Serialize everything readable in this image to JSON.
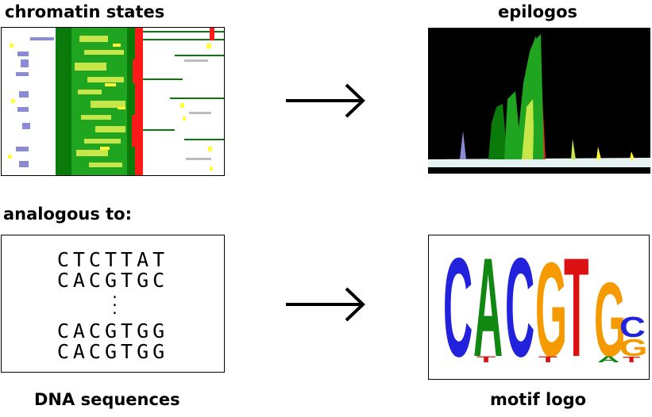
{
  "labels": {
    "chromatin_states": "chromatin states",
    "epilogos": "epilogos",
    "analogous_to": "analogous to:",
    "dna_sequences": "DNA sequences",
    "motif_logo": "motif logo"
  },
  "sequences": {
    "top": [
      "CTCTTAT",
      "CACGTGC"
    ],
    "ellipsis": [
      "·",
      "·",
      "·"
    ],
    "bottom": [
      "CACGTGG",
      "CACGTGG"
    ]
  },
  "motif_logo_letters": [
    {
      "main": "C",
      "main_color": "#2222dd"
    },
    {
      "main": "A",
      "main_color": "#118811",
      "minor": "T",
      "minor_color": "#dd1111"
    },
    {
      "main": "C",
      "main_color": "#2222dd"
    },
    {
      "main": "G",
      "main_color": "#f59a00",
      "minor": "T",
      "minor_color": "#dd1111"
    },
    {
      "main": "T",
      "main_color": "#dd1111"
    },
    {
      "main": "G",
      "main_color": "#f59a00",
      "minor": "A",
      "minor_color": "#118811"
    },
    {
      "main": "C",
      "main_color": "#2222dd",
      "minor": "G",
      "minor_color": "#f59a00",
      "extra": "T",
      "extra_color": "#dd1111"
    }
  ],
  "colors": {
    "state_green_dark": "#0a7a0a",
    "state_green": "#1fa51f",
    "state_lime": "#c6e64a",
    "state_yellow": "#ffff33",
    "state_red": "#ff1a1a",
    "state_blue": "#8a8ad6",
    "state_gray": "#bdbdbd",
    "epilogos_bg": "#000000"
  }
}
